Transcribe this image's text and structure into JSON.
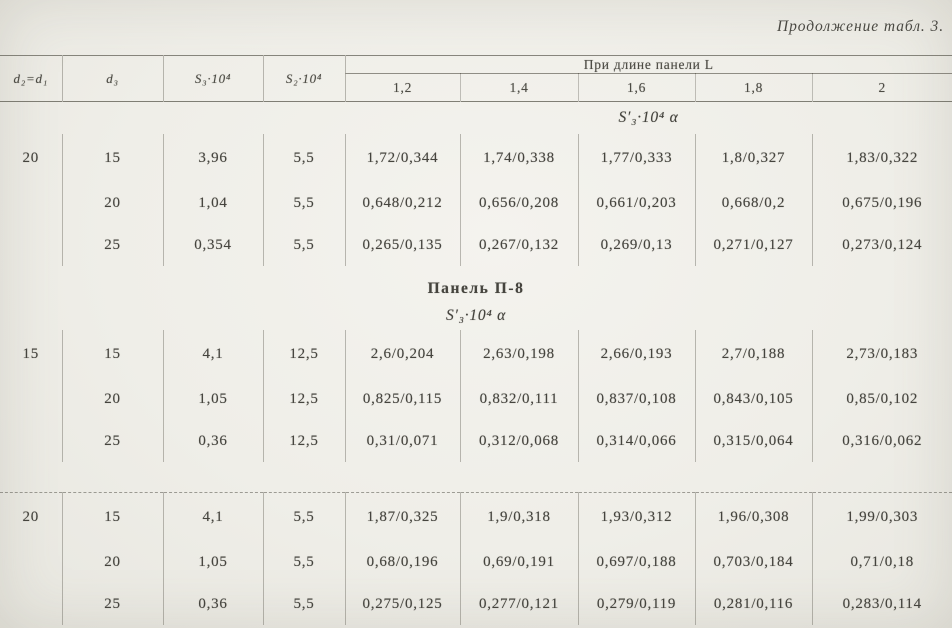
{
  "page": {
    "continuation_note": "Продолжение табл. 3."
  },
  "table": {
    "headers": {
      "d2d1": "d₂=d₁",
      "d3": "d₃",
      "s3": "S₃·10⁴",
      "s2": "S₂·10⁴",
      "panel_length_span": "При длине панели L",
      "lengths": [
        "1,2",
        "1,4",
        "1,6",
        "1,8",
        "2"
      ]
    },
    "formula_label_1": "S′₃·10⁴ α",
    "section": {
      "title": "Панель П-8",
      "formula_label": "S′₃·10⁴ α"
    },
    "blocks": [
      {
        "rows": [
          {
            "d1": "20",
            "d3": "15",
            "s3": "3,96",
            "s2": "5,5",
            "vals": [
              "1,72/0,344",
              "1,74/0,338",
              "1,77/0,333",
              "1,8/0,327",
              "1,83/0,322"
            ]
          },
          {
            "d1": "",
            "d3": "20",
            "s3": "1,04",
            "s2": "5,5",
            "vals": [
              "0,648/0,212",
              "0,656/0,208",
              "0,661/0,203",
              "0,668/0,2",
              "0,675/0,196"
            ]
          },
          {
            "d1": "",
            "d3": "25",
            "s3": "0,354",
            "s2": "5,5",
            "vals": [
              "0,265/0,135",
              "0,267/0,132",
              "0,269/0,13",
              "0,271/0,127",
              "0,273/0,124"
            ]
          }
        ]
      },
      {
        "rows": [
          {
            "d1": "15",
            "d3": "15",
            "s3": "4,1",
            "s2": "12,5",
            "vals": [
              "2,6/0,204",
              "2,63/0,198",
              "2,66/0,193",
              "2,7/0,188",
              "2,73/0,183"
            ]
          },
          {
            "d1": "",
            "d3": "20",
            "s3": "1,05",
            "s2": "12,5",
            "vals": [
              "0,825/0,115",
              "0,832/0,111",
              "0,837/0,108",
              "0,843/0,105",
              "0,85/0,102"
            ]
          },
          {
            "d1": "",
            "d3": "25",
            "s3": "0,36",
            "s2": "12,5",
            "vals": [
              "0,31/0,071",
              "0,312/0,068",
              "0,314/0,066",
              "0,315/0,064",
              "0,316/0,062"
            ]
          }
        ]
      },
      {
        "rows": [
          {
            "d1": "20",
            "d3": "15",
            "s3": "4,1",
            "s2": "5,5",
            "vals": [
              "1,87/0,325",
              "1,9/0,318",
              "1,93/0,312",
              "1,96/0,308",
              "1,99/0,303"
            ]
          },
          {
            "d1": "",
            "d3": "20",
            "s3": "1,05",
            "s2": "5,5",
            "vals": [
              "0,68/0,196",
              "0,69/0,191",
              "0,697/0,188",
              "0,703/0,184",
              "0,71/0,18"
            ]
          },
          {
            "d1": "",
            "d3": "25",
            "s3": "0,36",
            "s2": "5,5",
            "vals": [
              "0,275/0,125",
              "0,277/0,121",
              "0,279/0,119",
              "0,281/0,116",
              "0,283/0,114"
            ]
          }
        ]
      }
    ]
  }
}
